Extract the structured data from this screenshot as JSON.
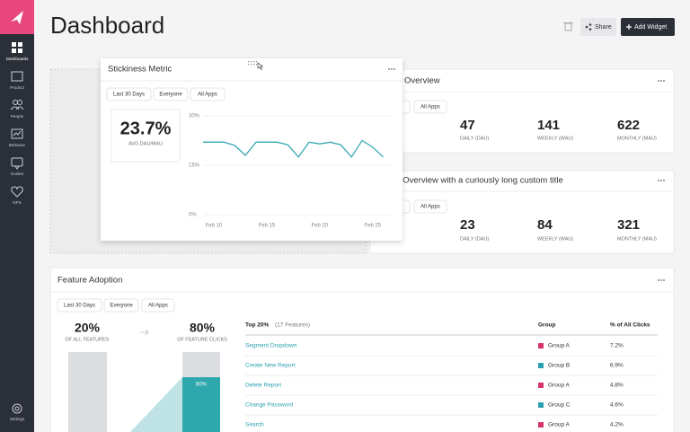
{
  "sidebar": {
    "items": [
      "Dashboards",
      "Product",
      "People",
      "Behavior",
      "Guides",
      "NPS"
    ],
    "settings": "Settings"
  },
  "header": {
    "title": "Dashboard",
    "share": "Share",
    "add_widget": "Add Widget"
  },
  "stickiness": {
    "title": "Stickiness Metric",
    "filters": [
      "Last 30 Days",
      "Everyone",
      "All Apps"
    ],
    "metric": {
      "value": "23.7%",
      "label": "AVG DAU/MAU"
    },
    "chart": {
      "type": "line",
      "color": "#3aa8b5",
      "categories": [
        null,
        "Feb 10",
        null,
        null,
        null,
        null,
        "Feb 15",
        null,
        null,
        null,
        null,
        "Feb 20",
        null,
        null,
        null,
        null,
        "Feb 25",
        null
      ],
      "values": [
        22,
        22,
        22,
        21,
        18,
        22,
        22,
        22,
        21.2,
        17.5,
        22,
        21.5,
        22,
        21.2,
        17.5,
        22.5,
        20.5,
        17.5
      ],
      "ylim": [
        0,
        30
      ],
      "yticks": [
        {
          "value": 0,
          "label": "0%"
        },
        {
          "value": 15,
          "label": "15%"
        },
        {
          "value": 30,
          "label": "30%"
        }
      ]
    }
  },
  "overview_1": {
    "title": "Overview",
    "filters": [
      "All Apps"
    ],
    "stats": [
      {
        "value": 47,
        "label": "DAILY (DAU)"
      },
      {
        "value": 141,
        "label": "WEEKLY (WAU)"
      },
      {
        "value": 622,
        "label": "MONTHLY (MAU)"
      }
    ]
  },
  "overview_2": {
    "title": "t Overview with a curiously long custom title",
    "filters": [
      "All Apps"
    ],
    "stats": [
      {
        "value": 23,
        "label": "DAILY (DAU)"
      },
      {
        "value": 84,
        "label": "WEEKLY (WAU)"
      },
      {
        "value": 321,
        "label": "MONTHLY (MAU)"
      }
    ]
  },
  "feature_adoption": {
    "title": "Feature Adoption",
    "filters": [
      "Last 30 Days",
      "Everyone",
      "All Apps"
    ],
    "left": {
      "value": "20%",
      "label": "OF ALL FEATURES"
    },
    "right": {
      "value": "80%",
      "label": "OF FEATURE CLICKS"
    },
    "bar_label": "80%",
    "table": {
      "heading": "Top 20%",
      "count": "(17 Features)",
      "columns": [
        "Group",
        "% of All Clicks"
      ],
      "rows": [
        [
          "Segment Dropdown",
          "Group A",
          "7.2%"
        ],
        [
          "Create New Report",
          "Group B",
          "6.9%"
        ],
        [
          "Delete Report",
          "Group A",
          "4.8%"
        ],
        [
          "Change Password",
          "Group C",
          "4.6%"
        ],
        [
          "Search",
          "Group A",
          "4.2%"
        ]
      ]
    }
  }
}
